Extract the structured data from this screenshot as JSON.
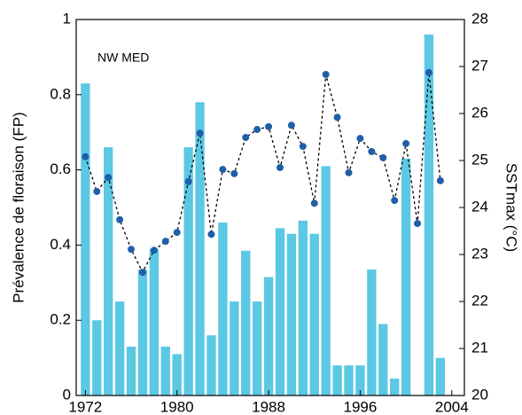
{
  "chart_data": {
    "type": "bar_line",
    "annotation": "NW MED",
    "y_label": "Prévalence de floraison (FP)",
    "y2_label": "SSTmax (°C)",
    "x": [
      1972,
      1973,
      1974,
      1975,
      1976,
      1977,
      1978,
      1979,
      1980,
      1981,
      1982,
      1983,
      1984,
      1985,
      1986,
      1987,
      1988,
      1989,
      1990,
      1991,
      1992,
      1993,
      1994,
      1995,
      1996,
      1997,
      1998,
      1999,
      2000,
      2001,
      2002,
      2003
    ],
    "series": [
      {
        "name": "FP",
        "color": "#5bc8e4",
        "kind": "bar",
        "values": [
          0.83,
          0.2,
          0.66,
          0.25,
          0.13,
          0.335,
          0.39,
          0.13,
          0.11,
          0.66,
          0.78,
          0.16,
          0.46,
          0.25,
          0.385,
          0.25,
          0.315,
          0.445,
          0.43,
          0.465,
          0.43,
          0.61,
          0.08,
          0.08,
          0.08,
          0.335,
          0.19,
          0.045,
          0.63,
          null,
          0.96,
          0.1
        ]
      },
      {
        "name": "SSTmax",
        "color": "#1f5fa8",
        "kind": "line",
        "axis": "y2",
        "values": [
          25.08,
          24.34,
          24.64,
          23.74,
          23.11,
          22.62,
          23.09,
          23.28,
          23.47,
          24.55,
          25.58,
          23.43,
          24.81,
          24.72,
          25.49,
          25.66,
          25.72,
          24.85,
          25.75,
          25.3,
          24.09,
          26.83,
          25.92,
          24.74,
          25.47,
          25.19,
          25.06,
          24.15,
          25.36,
          23.66,
          26.87,
          24.57
        ]
      }
    ],
    "xlim": [
      1971.2,
      2005.1
    ],
    "xticks": [
      1972,
      1980,
      1988,
      1996,
      2004
    ],
    "ylim": [
      0,
      1
    ],
    "yticks": [
      0,
      0.2,
      0.4,
      0.6,
      0.8,
      1
    ],
    "y2lim": [
      20,
      28
    ],
    "y2ticks": [
      20,
      21,
      22,
      23,
      24,
      25,
      26,
      27,
      28
    ]
  }
}
